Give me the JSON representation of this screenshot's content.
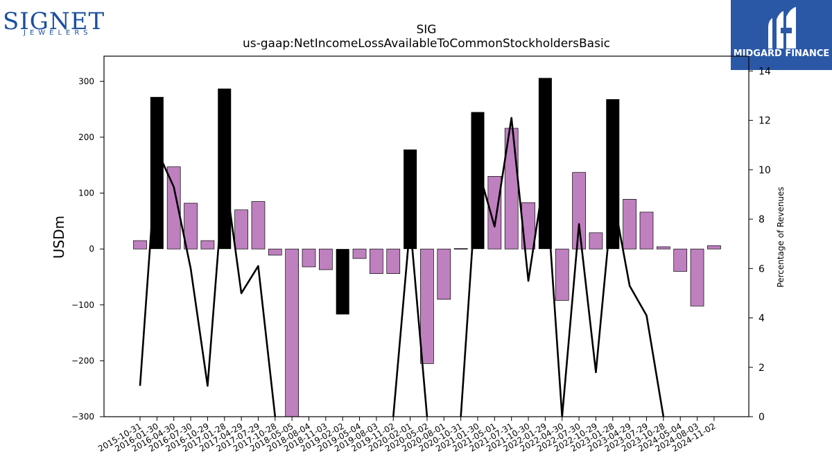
{
  "branding": {
    "left_logo_word": "SIGNET",
    "left_logo_sub": "JEWELERS",
    "right_logo_text": "MIDGARD FINANCE",
    "right_logo_bg": "#2b58a6",
    "left_logo_color": "#1b4fa0"
  },
  "chart_data": {
    "type": "bar",
    "title": "SIG",
    "subtitle": "us-gaap:NetIncomeLossAvailableToCommonStockholdersBasic",
    "ylabel": "USDm",
    "y2label": "Percentage of Revenues",
    "ylim": [
      -300,
      345
    ],
    "y2lim": [
      0,
      14.6
    ],
    "yticks": [
      -300,
      -200,
      -100,
      0,
      100,
      200,
      300
    ],
    "y2ticks": [
      0,
      2,
      4,
      6,
      8,
      10,
      12,
      14
    ],
    "grid": false,
    "colors": {
      "quarterly": "#bf80bf",
      "annual": "#000000",
      "line": "#000000"
    },
    "categories": [
      "2015-10-31",
      "2016-01-30",
      "2016-04-30",
      "2016-07-30",
      "2016-10-29",
      "2017-01-28",
      "2017-04-29",
      "2017-07-29",
      "2017-10-28",
      "2018-05-05",
      "2018-08-04",
      "2018-11-03",
      "2019-02-02",
      "2019-05-04",
      "2019-08-03",
      "2019-11-02",
      "2020-02-01",
      "2020-05-02",
      "2020-08-01",
      "2020-10-31",
      "2021-01-30",
      "2021-05-01",
      "2021-07-31",
      "2021-10-30",
      "2022-01-29",
      "2022-04-30",
      "2022-07-30",
      "2022-10-29",
      "2023-01-28",
      "2023-04-29",
      "2023-07-29",
      "2023-10-28",
      "2024-05-04",
      "2024-08-03",
      "2024-11-02"
    ],
    "series": [
      {
        "kind": "bar",
        "values": [
          15,
          272,
          147,
          82,
          15,
          287,
          70,
          85,
          -11,
          -302,
          -32,
          -37,
          -117,
          -17,
          -44,
          -44,
          178,
          -205,
          -90,
          1,
          245,
          130,
          216,
          83,
          306,
          -92,
          137,
          29,
          268,
          89,
          66,
          4,
          -40,
          -102,
          6
        ],
        "annual": [
          false,
          true,
          false,
          false,
          false,
          true,
          false,
          false,
          false,
          false,
          false,
          false,
          true,
          false,
          false,
          false,
          true,
          false,
          false,
          false,
          true,
          false,
          false,
          false,
          true,
          false,
          false,
          false,
          true,
          false,
          false,
          false,
          false,
          false,
          false
        ]
      },
      {
        "kind": "line",
        "axis": "right",
        "values": [
          1.25,
          10.8,
          9.3,
          6.0,
          1.25,
          10.0,
          5.0,
          6.1,
          0.0,
          null,
          null,
          null,
          null,
          null,
          null,
          0.0,
          7.8,
          0.0,
          null,
          0.0,
          10.1,
          7.7,
          12.1,
          5.5,
          10.0,
          0.0,
          7.8,
          1.8,
          9.0,
          5.3,
          4.1,
          0.0,
          null,
          null,
          0.4
        ]
      }
    ]
  }
}
